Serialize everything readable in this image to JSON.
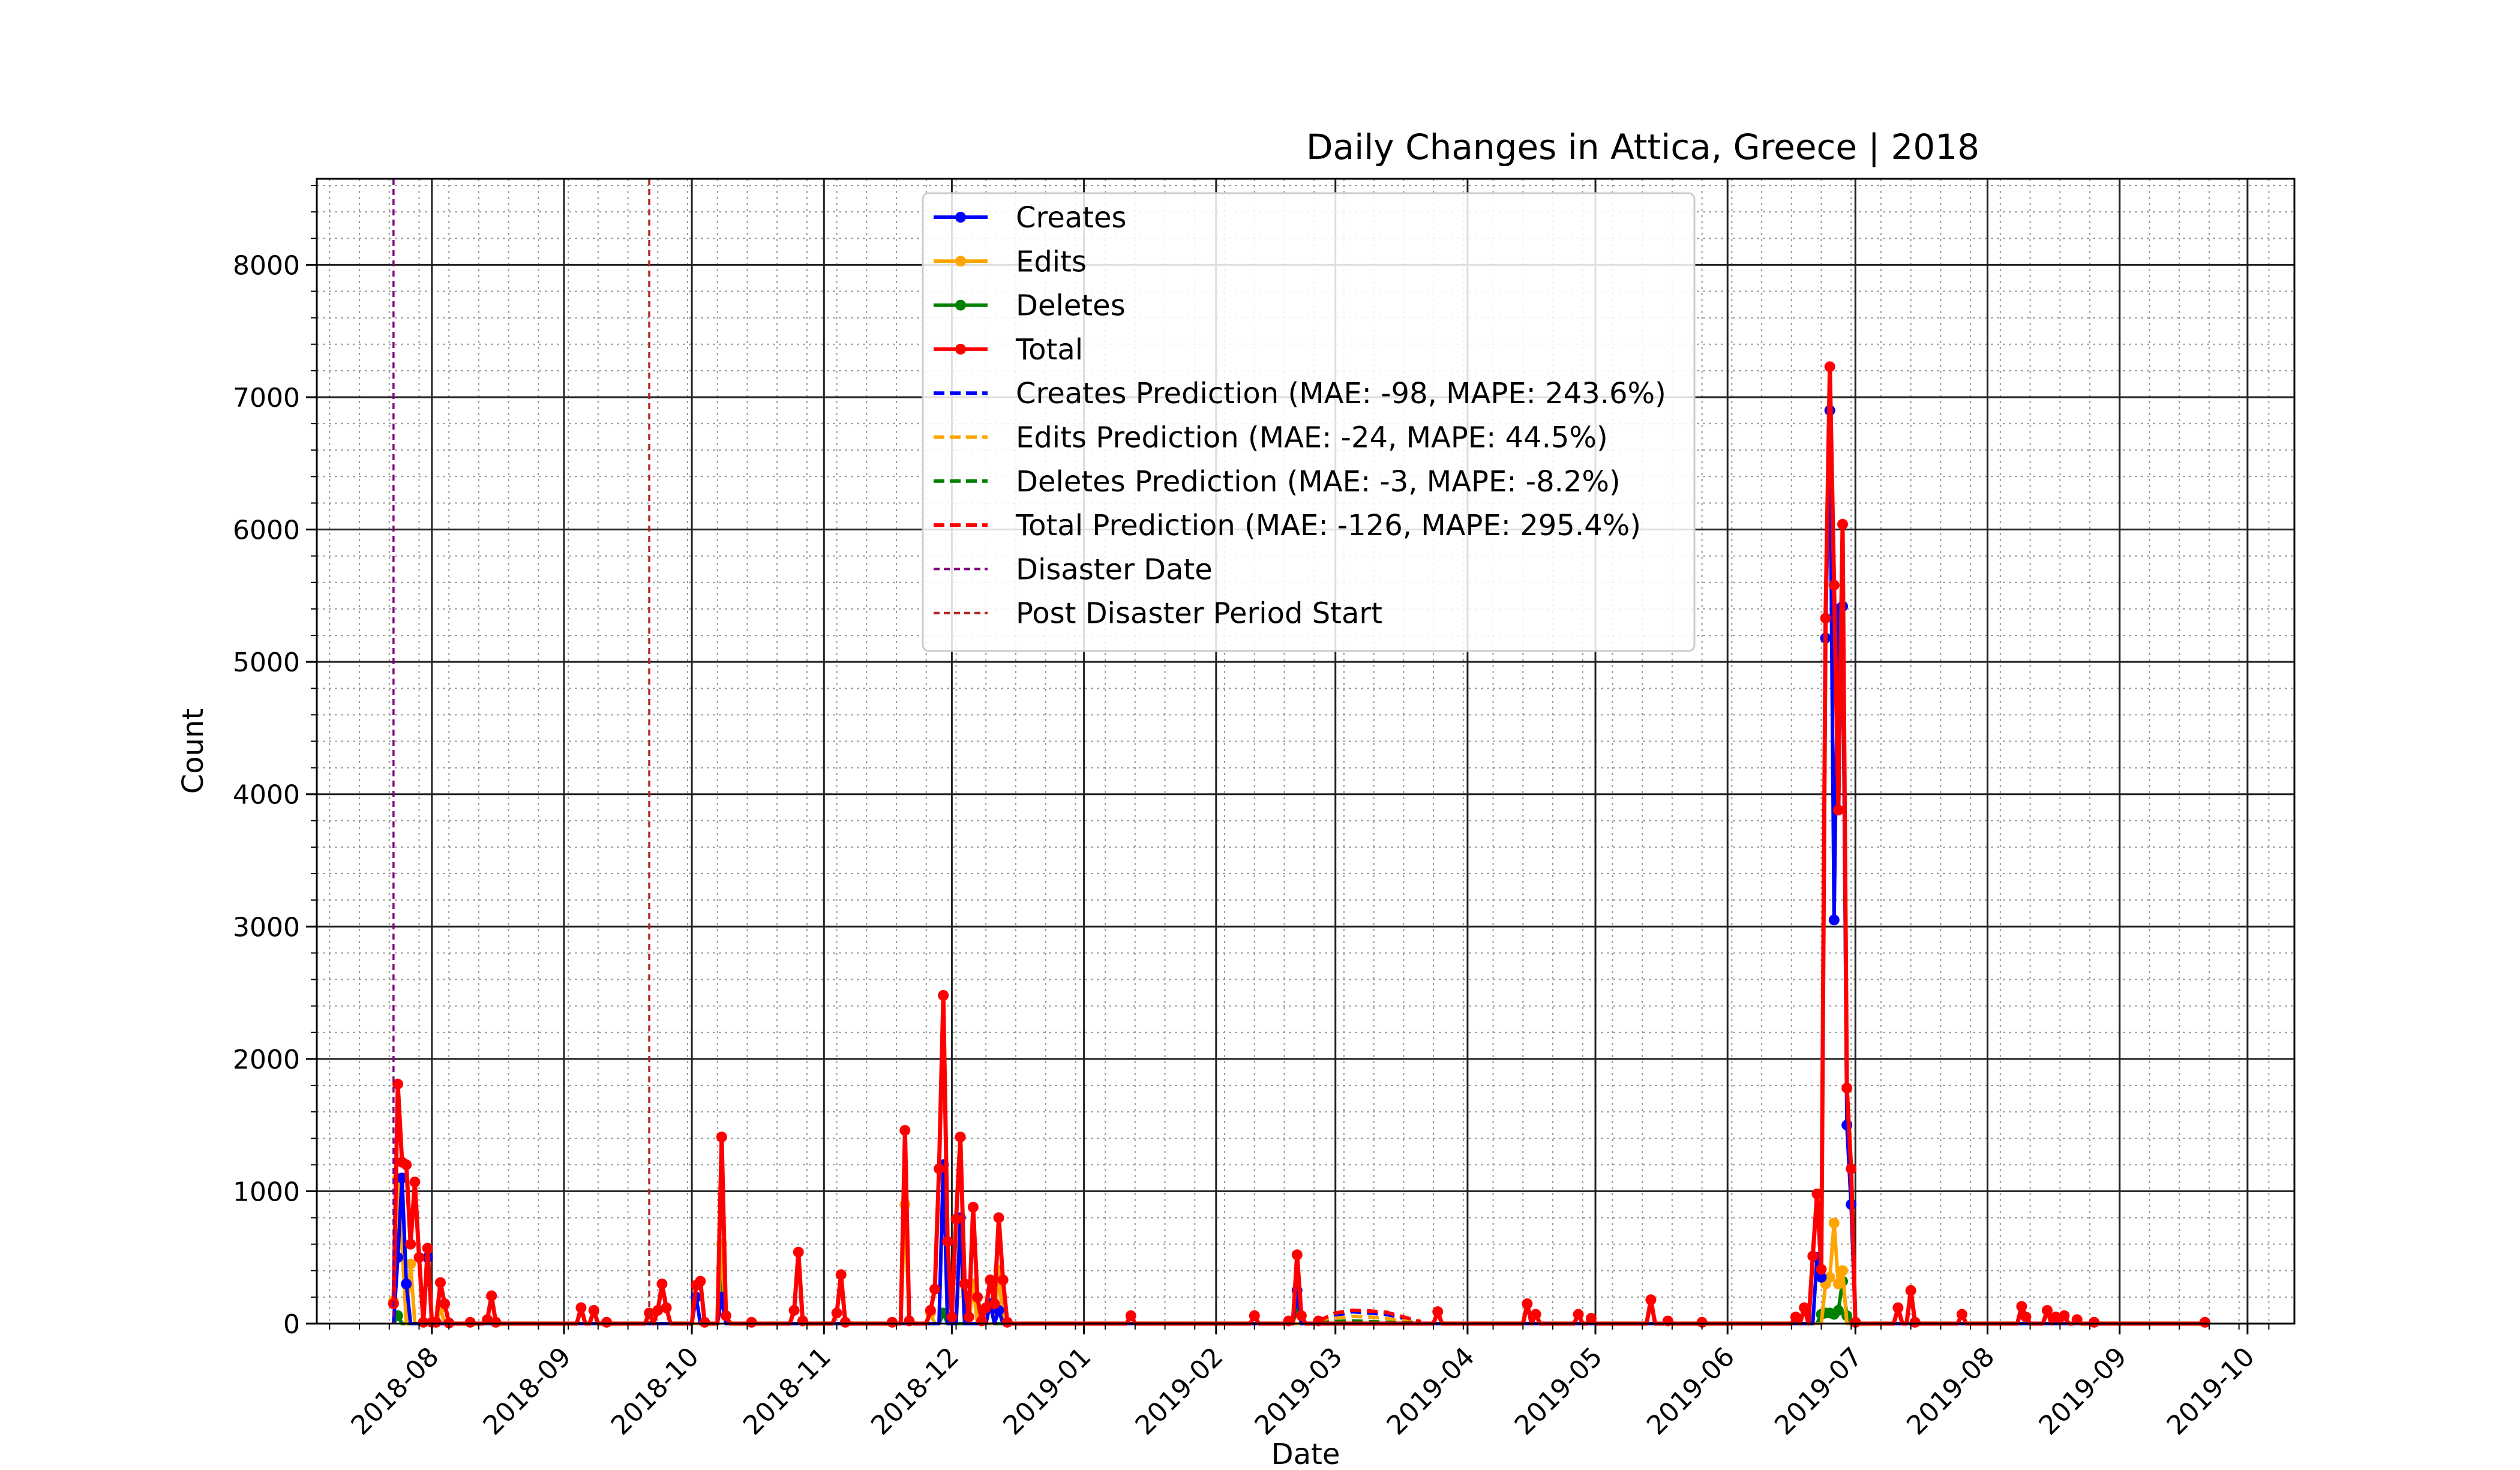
{
  "chart_data": {
    "type": "line",
    "title": "Daily Changes in Attica, Greece | 2018",
    "xlabel": "Date",
    "ylabel": "Count",
    "ylim": [
      0,
      8650
    ],
    "xlim": [
      "2018-07-05",
      "2019-10-12"
    ],
    "grid": true,
    "legend_position": "top-center",
    "x_ticks": [
      "2018-08",
      "2018-09",
      "2018-10",
      "2018-11",
      "2018-12",
      "2019-01",
      "2019-02",
      "2019-03",
      "2019-04",
      "2019-05",
      "2019-06",
      "2019-07",
      "2019-08",
      "2019-09",
      "2019-10"
    ],
    "y_ticks": [
      "0",
      "1000",
      "2000",
      "3000",
      "4000",
      "5000",
      "6000",
      "7000",
      "8000"
    ],
    "colors": {
      "creates": "#0000ff",
      "edits": "#ffa500",
      "deletes": "#008000",
      "total": "#ff0000",
      "disaster": "#800080",
      "post_disaster": "#b22222"
    },
    "legend": [
      {
        "label": "Creates",
        "color": "#0000ff",
        "style": "line-marker"
      },
      {
        "label": "Edits",
        "color": "#ffa500",
        "style": "line-marker"
      },
      {
        "label": "Deletes",
        "color": "#008000",
        "style": "line-marker"
      },
      {
        "label": "Total",
        "color": "#ff0000",
        "style": "line-marker"
      },
      {
        "label": "Creates Prediction (MAE: -98, MAPE: 243.6%)",
        "color": "#0000ff",
        "style": "dashed"
      },
      {
        "label": "Edits Prediction (MAE: -24, MAPE: 44.5%)",
        "color": "#ffa500",
        "style": "dashed"
      },
      {
        "label": "Deletes Prediction (MAE: -3, MAPE: -8.2%)",
        "color": "#008000",
        "style": "dashed"
      },
      {
        "label": "Total Prediction (MAE: -126, MAPE: 295.4%)",
        "color": "#ff0000",
        "style": "dashed"
      },
      {
        "label": "Disaster Date",
        "color": "#800080",
        "style": "dashed-thin"
      },
      {
        "label": "Post Disaster Period Start",
        "color": "#b22222",
        "style": "dashed-thin"
      }
    ],
    "vlines": [
      {
        "name": "Disaster Date",
        "date": "2018-07-23"
      },
      {
        "name": "Post Disaster Period Start",
        "date": "2018-09-21"
      }
    ],
    "series": [
      {
        "name": "Total",
        "points": [
          [
            "2018-07-23",
            150
          ],
          [
            "2018-07-24",
            1810
          ],
          [
            "2018-07-25",
            1220
          ],
          [
            "2018-07-26",
            1200
          ],
          [
            "2018-07-27",
            600
          ],
          [
            "2018-07-28",
            1070
          ],
          [
            "2018-07-29",
            500
          ],
          [
            "2018-07-30",
            10
          ],
          [
            "2018-07-31",
            570
          ],
          [
            "2018-08-01",
            10
          ],
          [
            "2018-08-02",
            10
          ],
          [
            "2018-08-03",
            310
          ],
          [
            "2018-08-04",
            150
          ],
          [
            "2018-08-05",
            5
          ],
          [
            "2018-08-10",
            10
          ],
          [
            "2018-08-14",
            30
          ],
          [
            "2018-08-15",
            210
          ],
          [
            "2018-08-16",
            10
          ],
          [
            "2018-09-05",
            120
          ],
          [
            "2018-09-08",
            100
          ],
          [
            "2018-09-11",
            10
          ],
          [
            "2018-09-21",
            80
          ],
          [
            "2018-09-23",
            100
          ],
          [
            "2018-09-24",
            300
          ],
          [
            "2018-09-25",
            120
          ],
          [
            "2018-10-02",
            290
          ],
          [
            "2018-10-03",
            320
          ],
          [
            "2018-10-04",
            10
          ],
          [
            "2018-10-08",
            1410
          ],
          [
            "2018-10-09",
            60
          ],
          [
            "2018-10-15",
            10
          ],
          [
            "2018-10-25",
            100
          ],
          [
            "2018-10-26",
            540
          ],
          [
            "2018-10-27",
            20
          ],
          [
            "2018-11-04",
            80
          ],
          [
            "2018-11-05",
            370
          ],
          [
            "2018-11-06",
            10
          ],
          [
            "2018-11-17",
            10
          ],
          [
            "2018-11-20",
            1460
          ],
          [
            "2018-11-21",
            20
          ],
          [
            "2018-11-26",
            100
          ],
          [
            "2018-11-27",
            260
          ],
          [
            "2018-11-28",
            1170
          ],
          [
            "2018-11-29",
            2480
          ],
          [
            "2018-11-30",
            620
          ],
          [
            "2018-12-01",
            50
          ],
          [
            "2018-12-02",
            790
          ],
          [
            "2018-12-03",
            1410
          ],
          [
            "2018-12-04",
            300
          ],
          [
            "2018-12-05",
            50
          ],
          [
            "2018-12-06",
            880
          ],
          [
            "2018-12-07",
            200
          ],
          [
            "2018-12-08",
            20
          ],
          [
            "2018-12-09",
            120
          ],
          [
            "2018-12-10",
            330
          ],
          [
            "2018-12-11",
            150
          ],
          [
            "2018-12-12",
            800
          ],
          [
            "2018-12-13",
            330
          ],
          [
            "2018-12-14",
            10
          ],
          [
            "2019-01-12",
            60
          ],
          [
            "2019-02-10",
            60
          ],
          [
            "2019-02-18",
            20
          ],
          [
            "2019-02-20",
            520
          ],
          [
            "2019-02-21",
            60
          ],
          [
            "2019-02-25",
            20
          ],
          [
            "2019-03-25",
            90
          ],
          [
            "2019-04-15",
            150
          ],
          [
            "2019-04-17",
            70
          ],
          [
            "2019-04-27",
            70
          ],
          [
            "2019-04-30",
            40
          ],
          [
            "2019-05-14",
            180
          ],
          [
            "2019-05-18",
            20
          ],
          [
            "2019-05-26",
            10
          ],
          [
            "2019-06-17",
            50
          ],
          [
            "2019-06-19",
            120
          ],
          [
            "2019-06-21",
            510
          ],
          [
            "2019-06-22",
            980
          ],
          [
            "2019-06-23",
            410
          ],
          [
            "2019-06-24",
            5330
          ],
          [
            "2019-06-25",
            7230
          ],
          [
            "2019-06-26",
            5580
          ],
          [
            "2019-06-27",
            3880
          ],
          [
            "2019-06-28",
            6040
          ],
          [
            "2019-06-29",
            1780
          ],
          [
            "2019-06-30",
            1170
          ],
          [
            "2019-07-01",
            10
          ],
          [
            "2019-07-11",
            120
          ],
          [
            "2019-07-14",
            250
          ],
          [
            "2019-07-15",
            10
          ],
          [
            "2019-07-26",
            70
          ],
          [
            "2019-08-09",
            130
          ],
          [
            "2019-08-10",
            50
          ],
          [
            "2019-08-15",
            100
          ],
          [
            "2019-08-17",
            50
          ],
          [
            "2019-08-19",
            60
          ],
          [
            "2019-08-22",
            30
          ],
          [
            "2019-08-26",
            10
          ],
          [
            "2019-09-21",
            10
          ]
        ]
      },
      {
        "name": "Creates",
        "points": [
          [
            "2018-07-24",
            500
          ],
          [
            "2018-07-25",
            1100
          ],
          [
            "2018-07-26",
            300
          ],
          [
            "2018-07-31",
            500
          ],
          [
            "2018-10-02",
            200
          ],
          [
            "2018-10-08",
            200
          ],
          [
            "2018-11-29",
            1200
          ],
          [
            "2018-12-03",
            800
          ],
          [
            "2018-12-10",
            150
          ],
          [
            "2018-12-12",
            100
          ],
          [
            "2019-02-20",
            250
          ],
          [
            "2019-06-22",
            500
          ],
          [
            "2019-06-23",
            350
          ],
          [
            "2019-06-24",
            5180
          ],
          [
            "2019-06-25",
            6900
          ],
          [
            "2019-06-26",
            3050
          ],
          [
            "2019-06-27",
            5400
          ],
          [
            "2019-06-28",
            5420
          ],
          [
            "2019-06-29",
            1500
          ],
          [
            "2019-06-30",
            900
          ],
          [
            "2019-07-01",
            10
          ]
        ]
      },
      {
        "name": "Edits",
        "points": [
          [
            "2018-07-23",
            170
          ],
          [
            "2018-07-24",
            1100
          ],
          [
            "2018-07-25",
            600
          ],
          [
            "2018-07-27",
            450
          ],
          [
            "2018-08-03",
            120
          ],
          [
            "2018-10-08",
            600
          ],
          [
            "2018-11-20",
            900
          ],
          [
            "2018-11-26",
            80
          ],
          [
            "2018-11-29",
            1200
          ],
          [
            "2018-12-03",
            600
          ],
          [
            "2018-12-06",
            300
          ],
          [
            "2018-12-12",
            400
          ],
          [
            "2019-06-24",
            300
          ],
          [
            "2019-06-25",
            350
          ],
          [
            "2019-06-26",
            760
          ],
          [
            "2019-06-27",
            300
          ],
          [
            "2019-06-28",
            400
          ],
          [
            "2019-07-01",
            10
          ]
        ]
      },
      {
        "name": "Deletes",
        "points": [
          [
            "2018-07-24",
            60
          ],
          [
            "2018-10-08",
            420
          ],
          [
            "2018-11-29",
            80
          ],
          [
            "2019-02-20",
            130
          ],
          [
            "2019-06-23",
            70
          ],
          [
            "2019-06-24",
            80
          ],
          [
            "2019-06-25",
            80
          ],
          [
            "2019-06-26",
            70
          ],
          [
            "2019-06-27",
            100
          ],
          [
            "2019-06-28",
            320
          ],
          [
            "2019-06-29",
            60
          ],
          [
            "2019-07-01",
            10
          ]
        ]
      },
      {
        "name": "Creates Prediction",
        "points": [
          [
            "2019-02-25",
            10
          ],
          [
            "2019-03-01",
            60
          ],
          [
            "2019-03-05",
            90
          ],
          [
            "2019-03-09",
            80
          ],
          [
            "2019-03-13",
            70
          ],
          [
            "2019-03-17",
            40
          ],
          [
            "2019-03-21",
            10
          ]
        ]
      },
      {
        "name": "Edits Prediction",
        "points": [
          [
            "2019-02-25",
            10
          ],
          [
            "2019-03-01",
            40
          ],
          [
            "2019-03-05",
            55
          ],
          [
            "2019-03-09",
            50
          ],
          [
            "2019-03-13",
            40
          ],
          [
            "2019-03-17",
            20
          ],
          [
            "2019-03-21",
            10
          ]
        ]
      },
      {
        "name": "Deletes Prediction",
        "points": [
          [
            "2019-02-25",
            5
          ],
          [
            "2019-03-01",
            15
          ],
          [
            "2019-03-05",
            20
          ],
          [
            "2019-03-09",
            15
          ],
          [
            "2019-03-13",
            10
          ],
          [
            "2019-03-17",
            5
          ],
          [
            "2019-03-21",
            5
          ]
        ]
      },
      {
        "name": "Total Prediction",
        "points": [
          [
            "2019-02-25",
            20
          ],
          [
            "2019-03-01",
            80
          ],
          [
            "2019-03-05",
            100
          ],
          [
            "2019-03-09",
            95
          ],
          [
            "2019-03-13",
            85
          ],
          [
            "2019-03-17",
            50
          ],
          [
            "2019-03-21",
            15
          ]
        ]
      }
    ]
  }
}
